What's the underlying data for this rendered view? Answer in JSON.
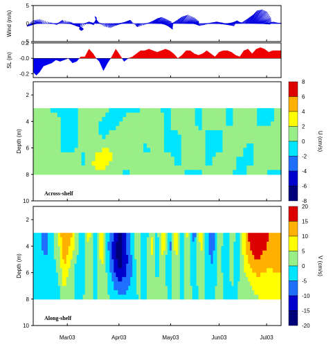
{
  "chart_data": [
    {
      "type": "line",
      "panel": "wind",
      "ylabel": "Wind (m/s)",
      "ylim": [
        -5,
        5
      ],
      "yticks": [
        "5",
        "0",
        "-5"
      ],
      "note": "wind vectors (stick plot)",
      "sticks": [
        [
          0.0,
          -2.0,
          -0.5
        ],
        [
          0.3,
          -3.2,
          -1.0
        ],
        [
          0.6,
          -2.5,
          1.0
        ],
        [
          0.9,
          -1.0,
          1.5
        ],
        [
          1.5,
          0.8,
          0.3
        ],
        [
          2.0,
          1.2,
          -0.4
        ],
        [
          2.5,
          0.6,
          0.8
        ],
        [
          3.0,
          -0.6,
          1.2
        ],
        [
          3.3,
          1.5,
          0.5
        ],
        [
          3.6,
          2.0,
          -0.8
        ],
        [
          4.0,
          2.8,
          -1.6
        ],
        [
          4.2,
          2.4,
          -2.0
        ],
        [
          4.4,
          1.0,
          -2.5
        ],
        [
          4.6,
          -0.5,
          -2.0
        ],
        [
          5.0,
          1.5,
          0.6
        ],
        [
          5.3,
          1.8,
          0.2
        ],
        [
          5.6,
          1.0,
          -0.5
        ],
        [
          6.0,
          0.5,
          2.0
        ],
        [
          6.2,
          -0.8,
          2.5
        ],
        [
          6.5,
          -1.0,
          0.5
        ],
        [
          7.0,
          -0.5,
          -1.0
        ],
        [
          7.3,
          0.6,
          -1.5
        ],
        [
          7.6,
          1.2,
          -0.8
        ],
        [
          8.0,
          1.5,
          -0.2
        ],
        [
          8.4,
          2.0,
          0.5
        ],
        [
          8.8,
          1.6,
          1.0
        ],
        [
          9.2,
          0.8,
          1.2
        ],
        [
          9.5,
          0.4,
          0.4
        ],
        [
          10.0,
          -0.3,
          -0.6
        ],
        [
          10.3,
          -0.8,
          -1.2
        ],
        [
          10.6,
          0.5,
          -0.5
        ],
        [
          11.0,
          1.2,
          0.4
        ],
        [
          11.5,
          2.0,
          1.8
        ],
        [
          11.8,
          2.4,
          2.2
        ],
        [
          12.0,
          3.2,
          1.5
        ],
        [
          12.2,
          4.2,
          0.6
        ],
        [
          12.4,
          4.0,
          -0.8
        ],
        [
          12.6,
          3.0,
          -1.5
        ],
        [
          12.8,
          2.5,
          -2.0
        ],
        [
          13.0,
          1.8,
          -1.2
        ],
        [
          13.3,
          1.0,
          0.2
        ],
        [
          13.7,
          0.6,
          1.0
        ],
        [
          14.0,
          1.5,
          2.4
        ],
        [
          14.3,
          2.5,
          3.0
        ],
        [
          14.6,
          3.6,
          2.0
        ],
        [
          14.9,
          4.0,
          0.8
        ],
        [
          15.2,
          3.0,
          0.2
        ],
        [
          15.6,
          1.2,
          -0.5
        ],
        [
          16.0,
          0.6,
          -0.8
        ],
        [
          16.4,
          0.8,
          -0.4
        ],
        [
          16.8,
          1.5,
          0.2
        ],
        [
          17.2,
          2.2,
          0.6
        ],
        [
          17.6,
          2.8,
          0.2
        ],
        [
          18.0,
          3.4,
          -0.4
        ],
        [
          18.4,
          3.8,
          -0.8
        ],
        [
          18.8,
          3.0,
          0.4
        ],
        [
          19.2,
          2.0,
          1.0
        ],
        [
          19.6,
          1.2,
          0.6
        ],
        [
          20.0,
          0.8,
          0.3
        ],
        [
          20.5,
          1.4,
          2.0
        ],
        [
          20.8,
          2.0,
          3.2
        ],
        [
          21.0,
          2.5,
          4.5
        ],
        [
          21.2,
          3.5,
          4.8
        ],
        [
          21.4,
          4.5,
          4.0
        ],
        [
          21.6,
          5.0,
          2.0
        ],
        [
          21.8,
          4.6,
          0.4
        ],
        [
          22.1,
          3.0,
          -0.2
        ],
        [
          22.5,
          1.6,
          0.2
        ],
        [
          23.0,
          1.0,
          0.6
        ],
        [
          23.5,
          0.8,
          0.2
        ],
        [
          24.0,
          0.5,
          0.2
        ]
      ]
    },
    {
      "type": "area",
      "panel": "sea-level",
      "ylabel": "SL (m)",
      "ylim": [
        -0.25,
        0.2
      ],
      "yticks": [
        "0.2",
        "-0.0",
        "-0.2"
      ],
      "x": [
        0,
        0.3,
        0.6,
        1.0,
        1.4,
        1.8,
        2.2,
        2.6,
        3.0,
        3.4,
        3.8,
        4.2,
        4.6,
        5.0,
        5.4,
        5.8,
        6.1,
        6.4,
        6.8,
        7.2,
        7.6,
        8.0,
        8.4,
        8.8,
        9.2,
        9.6,
        10.0,
        10.4,
        10.8,
        11.2,
        11.6,
        12.0,
        12.4,
        12.8,
        13.2,
        13.6,
        14.0,
        14.4,
        14.8,
        15.2,
        15.6,
        16.0,
        16.4,
        16.8,
        17.2,
        17.6,
        18.0,
        18.4,
        18.8,
        19.2,
        19.6,
        20.0,
        20.4,
        20.8,
        21.2,
        21.6,
        22.0,
        22.4,
        22.8,
        23.2,
        23.6,
        24.0
      ],
      "y": [
        -0.18,
        -0.22,
        -0.18,
        -0.1,
        -0.08,
        -0.06,
        -0.02,
        -0.04,
        -0.02,
        0.0,
        -0.06,
        -0.04,
        0.02,
        0.02,
        0.12,
        0.06,
        0.0,
        -0.04,
        -0.16,
        -0.06,
        0.02,
        0.12,
        0.04,
        -0.04,
        0.0,
        0.02,
        0.06,
        0.1,
        0.1,
        0.12,
        0.1,
        0.08,
        0.1,
        0.12,
        0.1,
        0.06,
        0.0,
        0.04,
        0.1,
        0.1,
        0.06,
        0.04,
        0.06,
        0.1,
        0.06,
        0.02,
        0.08,
        0.1,
        0.1,
        0.08,
        0.04,
        0.02,
        0.1,
        0.12,
        0.06,
        0.12,
        0.14,
        0.12,
        0.08,
        0.1,
        0.1,
        0.1
      ]
    },
    {
      "type": "heatmap",
      "panel": "across-shelf",
      "title": "Across-shelf",
      "ylabel": "Depth (m)",
      "ylim": [
        10,
        1
      ],
      "yticks": [
        "2",
        "4",
        "6",
        "8",
        "10"
      ],
      "colorbar_label": "U (cm/s)",
      "colorbar_ticks": [
        "8",
        "6",
        "4",
        "2",
        "0",
        "-2",
        "-4",
        "-6",
        "-8"
      ],
      "depth_range": [
        3,
        8
      ],
      "columns": [
        [
          "x",
          "values at depths 3,4,5,6,7,8 (cm/s)"
        ],
        [
          0.0,
          [
            1,
            1,
            1,
            1,
            1,
            1
          ]
        ],
        [
          1.0,
          [
            0.5,
            0.8,
            0.6,
            0.2,
            0.5,
            0.6
          ]
        ],
        [
          2.0,
          [
            -0.5,
            1,
            1,
            0.6,
            1,
            1
          ]
        ],
        [
          3.0,
          [
            -0.5,
            -0.6,
            -0.8,
            -0.4,
            0.6,
            1
          ]
        ],
        [
          4.0,
          [
            -0.4,
            -0.6,
            -0.4,
            -0.2,
            1.2,
            1
          ]
        ],
        [
          5.0,
          [
            1,
            0.6,
            0.4,
            0.2,
            -0.6,
            1
          ]
        ],
        [
          6.0,
          [
            0.8,
            0.6,
            0.2,
            1.2,
            2.6,
            1.8
          ]
        ],
        [
          7.0,
          [
            0.4,
            -0.6,
            -0.6,
            2.4,
            3.0,
            1.2
          ]
        ],
        [
          8.0,
          [
            -0.6,
            -0.8,
            1.0,
            1.4,
            1.2,
            1.0
          ]
        ],
        [
          9.0,
          [
            -0.6,
            0.6,
            1.0,
            1.2,
            0.6,
            -0.4
          ]
        ],
        [
          10.0,
          [
            -0.4,
            0.4,
            0.6,
            1.0,
            0.8,
            0.4
          ]
        ],
        [
          11.0,
          [
            0.6,
            1.0,
            0.8,
            -0.4,
            0.4,
            0.2
          ]
        ],
        [
          12.0,
          [
            0.6,
            0.8,
            1.0,
            1.2,
            0.6,
            0.4
          ]
        ],
        [
          13.0,
          [
            -0.8,
            -0.6,
            -0.4,
            -0.6,
            1.0,
            0.6
          ]
        ],
        [
          14.0,
          [
            1.0,
            1.2,
            -0.2,
            -0.6,
            -0.4,
            0.6
          ]
        ],
        [
          15.0,
          [
            1.2,
            1.0,
            0.4,
            0.6,
            0.8,
            -0.4
          ]
        ],
        [
          16.0,
          [
            -0.6,
            -0.8,
            0.6,
            1.2,
            1.0,
            -0.4
          ]
        ],
        [
          17.0,
          [
            1.0,
            0.8,
            -0.4,
            -0.8,
            -0.8,
            1.0
          ]
        ],
        [
          18.0,
          [
            1.0,
            0.6,
            -0.6,
            -0.6,
            1.2,
            1.0
          ]
        ],
        [
          19.0,
          [
            -0.4,
            -0.6,
            0.8,
            1.2,
            1.0,
            0.6
          ]
        ],
        [
          20.0,
          [
            0.6,
            0.8,
            1.0,
            1.0,
            -0.6,
            -0.8
          ]
        ],
        [
          21.0,
          [
            1.2,
            1.0,
            0.4,
            -0.8,
            -0.6,
            1.0
          ]
        ],
        [
          22.0,
          [
            -0.4,
            -0.6,
            0.8,
            1.2,
            1.0,
            0.4
          ]
        ],
        [
          23.0,
          [
            -0.6,
            -0.2,
            0.6,
            1.0,
            1.0,
            -0.4
          ]
        ],
        [
          24.0,
          [
            0.6,
            0.8,
            1.0,
            0.6,
            0.4,
            -0.2
          ]
        ]
      ]
    },
    {
      "type": "heatmap",
      "panel": "along-shelf",
      "title": "Along-shelf",
      "ylabel": "Depth (m)",
      "ylim": [
        10,
        1
      ],
      "yticks": [
        "2",
        "4",
        "6",
        "8",
        "10"
      ],
      "colorbar_label": "V (cm/s)",
      "colorbar_ticks": [
        "20",
        "15",
        "10",
        "5",
        "0",
        "-5",
        "-10",
        "-15",
        "-20"
      ],
      "depth_range": [
        3,
        8
      ],
      "columns": [
        [
          "x",
          "values at depths 3,4,5,6,7,8 (cm/s)"
        ],
        [
          0.0,
          [
            0,
            0,
            0,
            -2,
            -2,
            0
          ]
        ],
        [
          0.6,
          [
            -3,
            -4,
            -3,
            -2,
            -1,
            0
          ]
        ],
        [
          1.2,
          [
            -8,
            -7,
            -5,
            -4,
            -3,
            -2
          ]
        ],
        [
          1.8,
          [
            -2,
            -3,
            -2,
            -1,
            -1,
            0
          ]
        ],
        [
          2.4,
          [
            5,
            3,
            2,
            0,
            -1,
            -2
          ]
        ],
        [
          3.0,
          [
            16,
            14,
            12,
            9,
            6,
            3
          ]
        ],
        [
          3.6,
          [
            12,
            9,
            6,
            3,
            1,
            0
          ]
        ],
        [
          4.2,
          [
            4,
            2,
            0,
            -2,
            -1,
            0
          ]
        ],
        [
          4.8,
          [
            -4,
            -5,
            -4,
            -3,
            -1,
            0
          ]
        ],
        [
          5.4,
          [
            8,
            6,
            5,
            3,
            2,
            1
          ]
        ],
        [
          6.0,
          [
            -6,
            -5,
            -4,
            -3,
            -2,
            -1
          ]
        ],
        [
          6.6,
          [
            8,
            9,
            7,
            5,
            3,
            2
          ]
        ],
        [
          7.2,
          [
            -3,
            -4,
            -2,
            -1,
            0,
            1
          ]
        ],
        [
          7.8,
          [
            -10,
            -12,
            -12,
            -9,
            -5,
            -2
          ]
        ],
        [
          8.4,
          [
            -18,
            -20,
            -18,
            -14,
            -9,
            -4
          ]
        ],
        [
          9.0,
          [
            -8,
            -10,
            -12,
            -10,
            -7,
            -3
          ]
        ],
        [
          9.6,
          [
            -2,
            -3,
            -4,
            -5,
            -3,
            -1
          ]
        ],
        [
          10.2,
          [
            6,
            5,
            4,
            2,
            1,
            0
          ]
        ],
        [
          10.8,
          [
            -7,
            -6,
            -5,
            -3,
            -2,
            0
          ]
        ],
        [
          11.4,
          [
            6,
            7,
            6,
            4,
            2,
            1
          ]
        ],
        [
          12.0,
          [
            -2,
            -3,
            -2,
            -1,
            0,
            0
          ]
        ],
        [
          12.6,
          [
            12,
            9,
            5,
            3,
            2,
            1
          ]
        ],
        [
          13.2,
          [
            -7,
            -8,
            -6,
            -4,
            -2,
            -1
          ]
        ],
        [
          13.8,
          [
            9,
            8,
            6,
            4,
            2,
            1
          ]
        ],
        [
          14.4,
          [
            -4,
            -5,
            -4,
            -3,
            -2,
            0
          ]
        ],
        [
          15.0,
          [
            7,
            6,
            5,
            3,
            2,
            1
          ]
        ],
        [
          15.6,
          [
            -8,
            -7,
            -6,
            -4,
            -2,
            -1
          ]
        ],
        [
          16.2,
          [
            8,
            7,
            6,
            4,
            2,
            0
          ]
        ],
        [
          16.8,
          [
            -3,
            -4,
            -3,
            -2,
            -1,
            0
          ]
        ],
        [
          17.4,
          [
            -9,
            -8,
            -6,
            -4,
            -2,
            -1
          ]
        ],
        [
          18.0,
          [
            6,
            6,
            4,
            3,
            2,
            1
          ]
        ],
        [
          18.6,
          [
            -5,
            -6,
            -5,
            -3,
            -2,
            0
          ]
        ],
        [
          19.2,
          [
            4,
            3,
            2,
            1,
            0,
            -1
          ]
        ],
        [
          19.8,
          [
            -3,
            -4,
            -3,
            -2,
            0,
            0
          ]
        ],
        [
          20.4,
          [
            7,
            8,
            6,
            4,
            2,
            1
          ]
        ],
        [
          21.0,
          [
            18,
            16,
            12,
            8,
            5,
            3
          ]
        ],
        [
          21.6,
          [
            20,
            20,
            16,
            11,
            7,
            4
          ]
        ],
        [
          22.2,
          [
            18,
            17,
            13,
            10,
            8,
            5
          ]
        ],
        [
          22.8,
          [
            15,
            14,
            12,
            9,
            7,
            5
          ]
        ],
        [
          23.4,
          [
            13,
            12,
            12,
            10,
            8,
            6
          ]
        ],
        [
          24.0,
          [
            12,
            11,
            11,
            10,
            8,
            6
          ]
        ]
      ]
    }
  ],
  "xaxis": {
    "xlim": [
      0,
      24
    ],
    "month_ticks": [
      {
        "x": 3.3,
        "label": "Mar03"
      },
      {
        "x": 8.3,
        "label": "Apr03"
      },
      {
        "x": 13.3,
        "label": "May03"
      },
      {
        "x": 18.0,
        "label": "Jun03"
      },
      {
        "x": 22.6,
        "label": "Jul03"
      }
    ]
  },
  "colors": {
    "wind": "#0000e0",
    "sl_positive": "#ee0000",
    "sl_negative": "#0000ee",
    "levels": [
      "#00007a",
      "#0000cc",
      "#1f6fff",
      "#00b0ff",
      "#00e5ff",
      "#99ee88",
      "#ffff00",
      "#ffb000",
      "#ff5500",
      "#dd0000",
      "#7a0000"
    ]
  }
}
